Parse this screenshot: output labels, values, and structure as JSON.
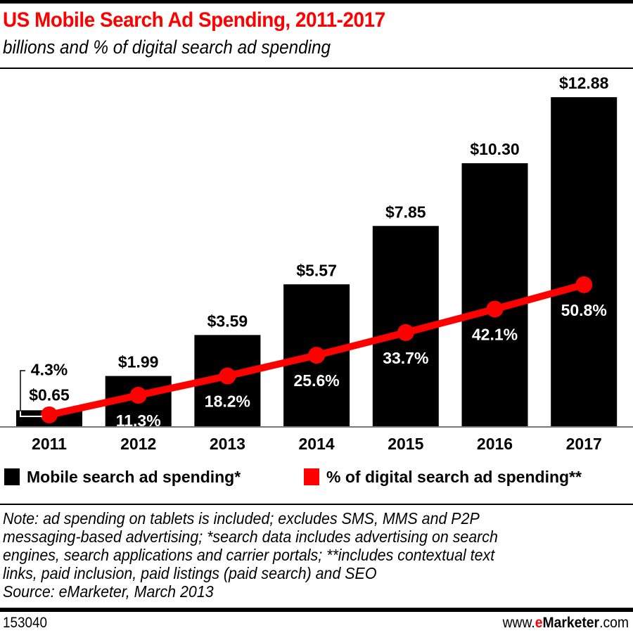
{
  "header": {
    "title": "US Mobile Search Ad Spending, 2011-2017",
    "subtitle": "billions and % of digital search ad spending"
  },
  "colors": {
    "title": "#ff0000",
    "bars": "#000000",
    "line": "#ff0000",
    "brand_accent": "#ff0000"
  },
  "chart_data": {
    "type": "bar",
    "title": "US Mobile Search Ad Spending, 2011-2017",
    "subtitle": "billions and % of digital search ad spending",
    "xlabel": "",
    "ylabel": "",
    "categories": [
      "2011",
      "2012",
      "2013",
      "2014",
      "2015",
      "2016",
      "2017"
    ],
    "series": [
      {
        "name": "Mobile search ad spending*",
        "type": "bar",
        "unit": "billions USD",
        "values": [
          0.65,
          1.99,
          3.59,
          5.57,
          7.85,
          10.3,
          12.88
        ],
        "labels": [
          "$0.65",
          "$1.99",
          "$3.59",
          "$5.57",
          "$7.85",
          "$10.30",
          "$12.88"
        ]
      },
      {
        "name": "% of digital search ad spending**",
        "type": "line",
        "unit": "percent",
        "values": [
          4.3,
          11.3,
          18.2,
          25.6,
          33.7,
          42.1,
          50.8
        ],
        "labels": [
          "4.3%",
          "11.3%",
          "18.2%",
          "25.6%",
          "33.7%",
          "42.1%",
          "50.8%"
        ]
      }
    ],
    "grid": false,
    "legend": "bottom"
  },
  "legend": {
    "items": [
      {
        "label": "Mobile search ad spending*",
        "color": "#000000"
      },
      {
        "label": "% of digital search ad spending**",
        "color": "#ff0000"
      }
    ]
  },
  "note": {
    "lines": [
      "Note: ad spending on tablets is included; excludes SMS, MMS and P2P",
      "messaging-based advertising; *search data includes advertising on search",
      "engines, search applications and carrier portals; **includes contextual text",
      "links, paid inclusion, paid listings (paid search) and SEO",
      "Source: eMarketer, March 2013"
    ]
  },
  "footer": {
    "chart_id": "153040",
    "url_prefix": "www.",
    "url_e": "e",
    "url_brand": "Marketer",
    "url_suffix": ".com"
  }
}
